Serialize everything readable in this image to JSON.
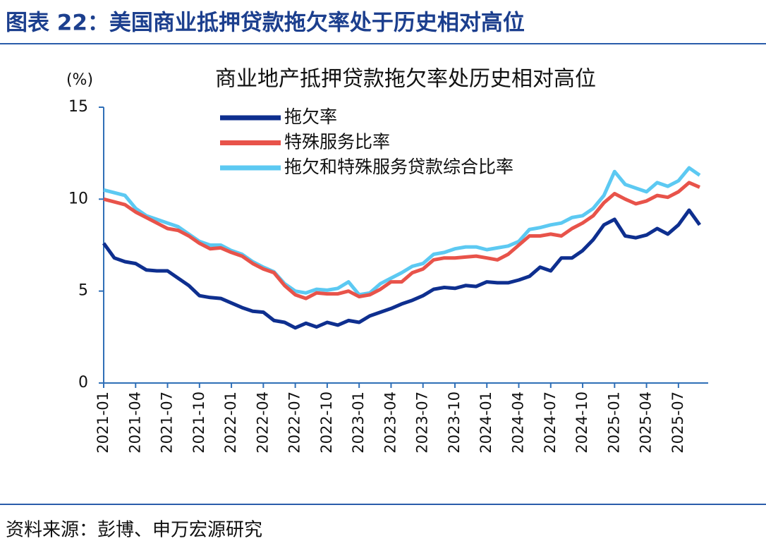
{
  "header": {
    "title": "图表 22：美国商业抵押贷款拖欠率处于历史相对高位"
  },
  "source": "资料来源：彭博、申万宏源研究",
  "chart_data": {
    "type": "line",
    "title": "商业地产抵押贷款拖欠率处历史相对高位",
    "y_label": "(%)",
    "categories": [
      "2021-01",
      null,
      null,
      "2021-04",
      null,
      null,
      "2021-07",
      null,
      null,
      "2021-10",
      null,
      null,
      "2022-01",
      null,
      null,
      "2022-04",
      null,
      null,
      "2022-07",
      null,
      null,
      "2022-10",
      null,
      null,
      "2023-01",
      null,
      null,
      "2023-04",
      null,
      null,
      "2023-07",
      null,
      null,
      "2023-10",
      null,
      null,
      "2024-01",
      null,
      null,
      "2024-04",
      null,
      null,
      "2024-07",
      null,
      null,
      "2024-10",
      null,
      null,
      "2025-01",
      null,
      null,
      "2025-04",
      null,
      null,
      "2025-07",
      null,
      null
    ],
    "ylim": [
      0,
      15
    ],
    "yticks": [
      0,
      5,
      10,
      15
    ],
    "grid": false,
    "series": [
      {
        "name": "拖欠率",
        "color": "#0e2f8f",
        "values": [
          7.6,
          6.8,
          6.6,
          6.5,
          6.15,
          6.1,
          6.1,
          5.7,
          5.3,
          4.75,
          4.65,
          4.6,
          4.35,
          4.1,
          3.9,
          3.85,
          3.4,
          3.3,
          3.0,
          3.25,
          3.05,
          3.3,
          3.15,
          3.4,
          3.3,
          3.65,
          3.85,
          4.05,
          4.3,
          4.5,
          4.75,
          5.1,
          5.2,
          5.15,
          5.3,
          5.25,
          5.5,
          5.45,
          5.45,
          5.6,
          5.8,
          6.3,
          6.1,
          6.8,
          6.8,
          7.2,
          7.8,
          8.6,
          8.9,
          8.0,
          7.9,
          8.05,
          8.4,
          8.1,
          8.6,
          9.4,
          8.6
        ]
      },
      {
        "name": "特殊服务比率",
        "color": "#e8534a",
        "values": [
          10.0,
          9.85,
          9.7,
          9.3,
          9.0,
          8.7,
          8.4,
          8.3,
          8.0,
          7.6,
          7.3,
          7.35,
          7.1,
          6.9,
          6.5,
          6.2,
          6.0,
          5.3,
          4.8,
          4.6,
          4.9,
          4.85,
          4.85,
          5.0,
          4.7,
          4.8,
          5.1,
          5.5,
          5.5,
          6.0,
          6.2,
          6.7,
          6.8,
          6.8,
          6.85,
          6.9,
          6.8,
          6.7,
          7.0,
          7.5,
          8.0,
          8.0,
          8.1,
          8.0,
          8.4,
          8.7,
          9.1,
          9.8,
          10.3,
          10.0,
          9.75,
          9.9,
          10.2,
          10.1,
          10.4,
          10.9,
          10.65
        ]
      },
      {
        "name": "拖欠和特殊服务贷款综合比率",
        "color": "#5cc9f2",
        "values": [
          10.5,
          10.35,
          10.2,
          9.5,
          9.1,
          8.9,
          8.7,
          8.5,
          8.1,
          7.7,
          7.5,
          7.5,
          7.2,
          7.0,
          6.6,
          6.3,
          6.05,
          5.4,
          5.0,
          4.9,
          5.1,
          5.05,
          5.15,
          5.5,
          4.8,
          4.9,
          5.4,
          5.7,
          6.0,
          6.35,
          6.5,
          7.0,
          7.1,
          7.3,
          7.4,
          7.4,
          7.25,
          7.35,
          7.45,
          7.7,
          8.35,
          8.45,
          8.6,
          8.7,
          9.0,
          9.1,
          9.5,
          10.2,
          11.5,
          10.8,
          10.6,
          10.4,
          10.9,
          10.7,
          11.0,
          11.7,
          11.3
        ]
      }
    ]
  }
}
